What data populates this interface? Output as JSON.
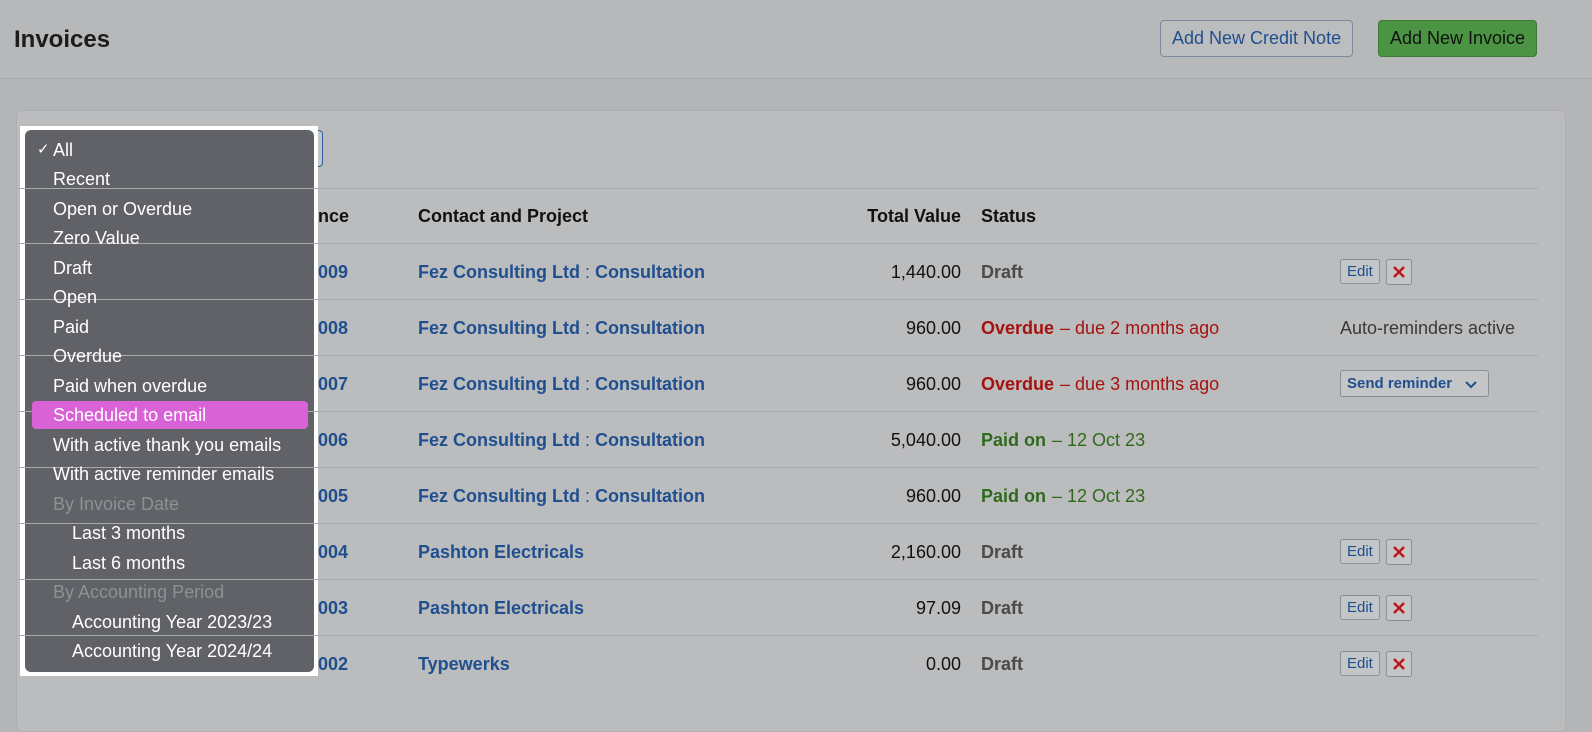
{
  "header": {
    "title": "Invoices",
    "buttons": [
      "Add New Credit Note",
      "Add New Invoice"
    ]
  },
  "menu": {
    "check": "✓",
    "options": [
      "All",
      "Recent",
      "Open or Overdue",
      "Zero Value",
      "Draft",
      "Open",
      "Paid",
      "Overdue",
      "Paid when overdue",
      "Scheduled to email",
      "With active thank you emails",
      "With active reminder emails"
    ],
    "groups": [
      {
        "heading": "By Invoice Date",
        "options": [
          "Last 3 months",
          "Last 6 months"
        ]
      },
      {
        "heading": "By Accounting Period",
        "options": [
          "Accounting Year 2023/23",
          "Accounting Year 2024/24"
        ]
      }
    ]
  },
  "table": {
    "columns": [
      "nce",
      "Contact and Project",
      "Total Value",
      "Status"
    ],
    "separator": ":",
    "rows": [
      {
        "ref": "009",
        "contact": "Fez Consulting Ltd",
        "project": "Consultation",
        "total": "1,440.00",
        "status": "Draft",
        "edit": "Edit"
      },
      {
        "ref": "008",
        "contact": "Fez Consulting Ltd",
        "project": "Consultation",
        "total": "960.00",
        "status": "Overdue",
        "detail": "– due 2 months ago",
        "note": "Auto-reminders active"
      },
      {
        "ref": "007",
        "contact": "Fez Consulting Ltd",
        "project": "Consultation",
        "total": "960.00",
        "status": "Overdue",
        "detail": "– due 3 months ago",
        "button": "Send reminder"
      },
      {
        "ref": "006",
        "contact": "Fez Consulting Ltd",
        "project": "Consultation",
        "total": "5,040.00",
        "status": "Paid on",
        "detail": "– 12 Oct 23"
      },
      {
        "ref": "005",
        "contact": "Fez Consulting Ltd",
        "project": "Consultation",
        "total": "960.00",
        "status": "Paid on",
        "detail": "– 12 Oct 23"
      },
      {
        "ref": "004",
        "contact": "Pashton Electricals",
        "total": "2,160.00",
        "status": "Draft",
        "edit": "Edit"
      },
      {
        "ref": "003",
        "contact": "Pashton Electricals",
        "total": "97.09",
        "status": "Draft",
        "edit": "Edit"
      },
      {
        "ref": "002",
        "contact": "Typewerks",
        "total": "0.00",
        "status": "Draft",
        "edit": "Edit"
      }
    ]
  }
}
